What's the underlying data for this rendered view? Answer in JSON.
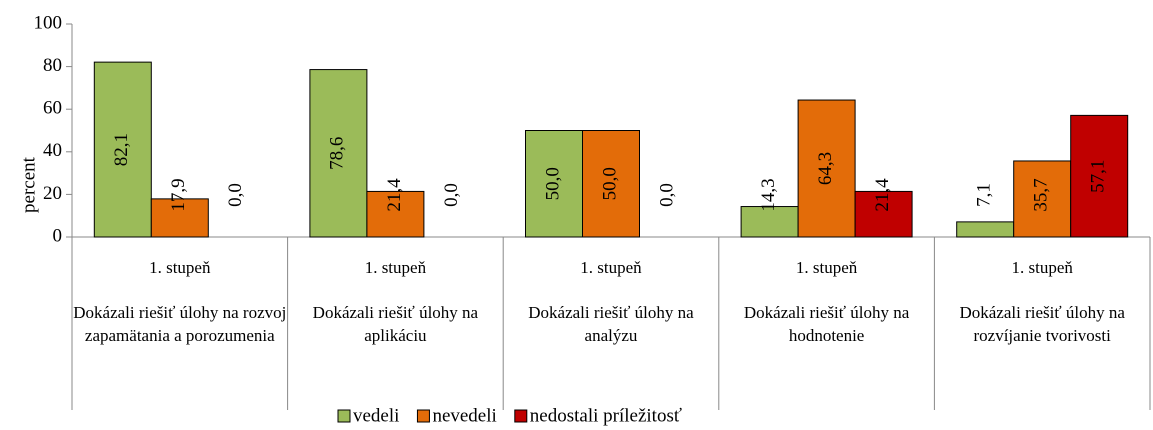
{
  "chart_data": {
    "type": "bar",
    "y_label": "percent",
    "subcategories": [
      "1. stupeň",
      "1. stupeň",
      "1. stupeň",
      "1. stupeň",
      "1. stupeň"
    ],
    "categories": [
      "Dokázali riešiť úlohy na rozvoj zapamätania a porozumenia",
      "Dokázali riešiť úlohy na aplikáciu",
      "Dokázali riešiť úlohy na analýzu",
      "Dokázali riešiť úlohy na hodnotenie",
      "Dokázali riešiť úlohy na rozvíjanie tvorivosti"
    ],
    "series": [
      {
        "name": "vedeli",
        "color": "#9bbb59",
        "values": [
          82.1,
          78.6,
          50.0,
          14.3,
          7.1
        ],
        "value_labels": [
          "82,1",
          "78,6",
          "50,0",
          "14,3",
          "7,1"
        ]
      },
      {
        "name": "nevedeli",
        "color": "#e36c09",
        "values": [
          17.9,
          21.4,
          50.0,
          64.3,
          35.7
        ],
        "value_labels": [
          "17,9",
          "21,4",
          "50,0",
          "64,3",
          "35,7"
        ]
      },
      {
        "name": "nedostali príležitosť",
        "color": "#c00000",
        "values": [
          0.0,
          0.0,
          0.0,
          21.4,
          57.1
        ],
        "value_labels": [
          "0,0",
          "0,0",
          "0,0",
          "21,4",
          "57,1"
        ]
      }
    ],
    "ylim": [
      0,
      100
    ],
    "yticks": [
      0,
      20,
      40,
      60,
      80,
      100
    ],
    "legend": "bottom"
  }
}
